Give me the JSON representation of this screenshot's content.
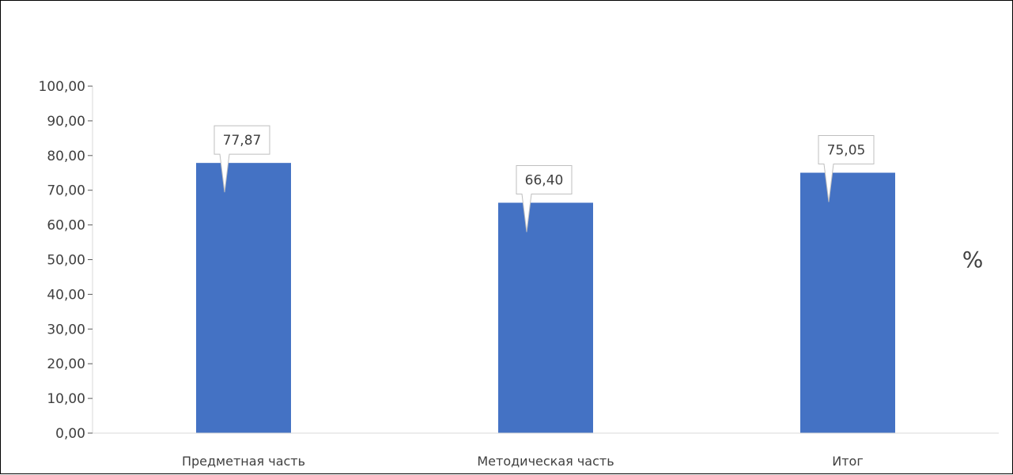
{
  "chart_data": {
    "type": "bar",
    "categories": [
      "Предметная часть",
      "Методическая часть",
      "Итог"
    ],
    "values": [
      77.87,
      66.4,
      75.05
    ],
    "value_labels": [
      "77,87",
      "66,40",
      "75,05"
    ],
    "ylim": [
      0,
      100
    ],
    "ytick_labels": [
      "0,00",
      "10,00",
      "20,00",
      "30,00",
      "40,00",
      "50,00",
      "60,00",
      "70,00",
      "80,00",
      "90,00",
      "100,00"
    ],
    "unit_label": "%",
    "bar_color": "#4472C4",
    "grid": false,
    "legend": "none"
  }
}
